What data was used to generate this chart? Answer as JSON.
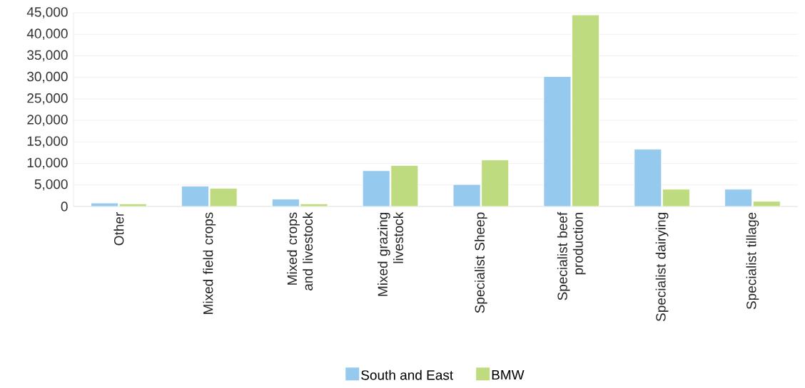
{
  "chart_data": {
    "type": "bar",
    "categories": [
      "Other",
      "Mixed field crops",
      "Mixed crops and livestock",
      "Mixed grazing livestock",
      "Specialist Sheep",
      "Specialist beef production",
      "Specialist dairying",
      "Specialist tillage"
    ],
    "series": [
      {
        "name": "South and East",
        "color": "#95c9ed",
        "values": [
          800,
          4700,
          1700,
          8300,
          5100,
          30200,
          13300,
          4000
        ]
      },
      {
        "name": "BMW",
        "color": "#bfdb80",
        "values": [
          600,
          4200,
          600,
          9500,
          10800,
          44500,
          4000,
          1200
        ]
      }
    ],
    "ylim": [
      0,
      45000
    ],
    "yticks": [
      0,
      {
        "value": 5000,
        "label": "5,000"
      },
      {
        "value": 10000,
        "label": "10,000"
      },
      {
        "value": 15000,
        "label": "15,000"
      },
      {
        "value": 20000,
        "label": "20,000"
      },
      {
        "value": 25000,
        "label": "25,000"
      },
      {
        "value": 30000,
        "label": "30,000"
      },
      {
        "value": 35000,
        "label": "35,000"
      },
      {
        "value": 40000,
        "label": "40,000"
      },
      {
        "value": 45000,
        "label": "45,000"
      }
    ],
    "grid": "y",
    "legend": "bottom"
  }
}
